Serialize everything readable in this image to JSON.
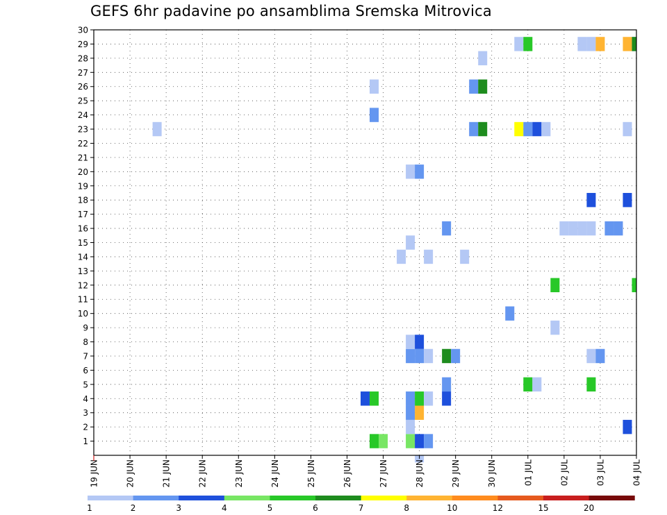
{
  "chart_data": {
    "type": "heatmap",
    "title": "GEFS 6hr padavine po ansamblima Sremska Mitrovica",
    "xlabel": "",
    "ylabel": "",
    "x_ticks": [
      "19 JUN",
      "20 JUN",
      "21 JUN",
      "22 JUN",
      "23 JUN",
      "24 JUN",
      "25 JUN",
      "26 JUN",
      "27 JUN",
      "28 JUN",
      "29 JUN",
      "30 JUN",
      "01 JUL",
      "02 JUL",
      "03 JUL",
      "04 JUL"
    ],
    "y_ticks": [
      1,
      2,
      3,
      4,
      5,
      6,
      7,
      8,
      9,
      10,
      11,
      12,
      13,
      14,
      15,
      16,
      17,
      18,
      19,
      20,
      21,
      22,
      23,
      24,
      25,
      26,
      27,
      28,
      29,
      30
    ],
    "ylim": [
      0,
      30
    ],
    "x_step_hours": 6,
    "grid": "dotted",
    "legend": {
      "placement": "bottom",
      "thresholds": [
        "1",
        "2",
        "3",
        "4",
        "5",
        "6",
        "7",
        "8",
        "10",
        "12",
        "15",
        "20"
      ],
      "colors": [
        "#b4c8f5",
        "#6496f0",
        "#1e50dc",
        "#78e664",
        "#28c828",
        "#1e8c1e",
        "#ffff00",
        "#ffb432",
        "#ff8c1e",
        "#e65a1e",
        "#c81e1e",
        "#780a0a"
      ]
    },
    "cells": [
      {
        "date": "26 JUN",
        "step": 3,
        "member": 1,
        "value": 5
      },
      {
        "date": "27 JUN",
        "step": 0,
        "member": 1,
        "value": 4
      },
      {
        "date": "27 JUN",
        "step": 3,
        "member": 1,
        "value": 4
      },
      {
        "date": "27 JUN",
        "step": 4,
        "member": 1,
        "value": 3
      },
      {
        "date": "27 JUN",
        "step": 5,
        "member": 1,
        "value": 2
      },
      {
        "date": "27 JUN",
        "step": 4,
        "member": 0,
        "value": 1
      },
      {
        "date": "27 JUN",
        "step": 3,
        "member": 2,
        "value": 1
      },
      {
        "date": "04 JUL",
        "step": -1,
        "member": 2,
        "value": 3
      },
      {
        "date": "27 JUN",
        "step": 3,
        "member": 3,
        "value": 2
      },
      {
        "date": "27 JUN",
        "step": 4,
        "member": 3,
        "value": 8
      },
      {
        "date": "26 JUN",
        "step": 2,
        "member": 4,
        "value": 3
      },
      {
        "date": "26 JUN",
        "step": 3,
        "member": 4,
        "value": 5
      },
      {
        "date": "27 JUN",
        "step": 3,
        "member": 4,
        "value": 2
      },
      {
        "date": "27 JUN",
        "step": 4,
        "member": 4,
        "value": 5
      },
      {
        "date": "27 JUN",
        "step": 5,
        "member": 4,
        "value": 1
      },
      {
        "date": "28 JUN",
        "step": 3,
        "member": 4,
        "value": 3
      },
      {
        "date": "28 JUN",
        "step": 3,
        "member": 5,
        "value": 2
      },
      {
        "date": "30 JUN",
        "step": 4,
        "member": 5,
        "value": 5
      },
      {
        "date": "30 JUN",
        "step": 5,
        "member": 5,
        "value": 1
      },
      {
        "date": "02 JUL",
        "step": 3,
        "member": 5,
        "value": 5
      },
      {
        "date": "27 JUN",
        "step": 3,
        "member": 7,
        "value": 2
      },
      {
        "date": "27 JUN",
        "step": 4,
        "member": 7,
        "value": 2
      },
      {
        "date": "27 JUN",
        "step": 5,
        "member": 7,
        "value": 1
      },
      {
        "date": "28 JUN",
        "step": 3,
        "member": 7,
        "value": 6
      },
      {
        "date": "28 JUN",
        "step": 4,
        "member": 7,
        "value": 2
      },
      {
        "date": "02 JUL",
        "step": 3,
        "member": 7,
        "value": 1
      },
      {
        "date": "02 JUL",
        "step": 4,
        "member": 7,
        "value": 2
      },
      {
        "date": "27 JUN",
        "step": 3,
        "member": 8,
        "value": 1
      },
      {
        "date": "27 JUN",
        "step": 4,
        "member": 8,
        "value": 3
      },
      {
        "date": "01 JUL",
        "step": 3,
        "member": 9,
        "value": 1
      },
      {
        "date": "30 JUN",
        "step": 2,
        "member": 10,
        "value": 2
      },
      {
        "date": "01 JUL",
        "step": 3,
        "member": 12,
        "value": 5
      },
      {
        "date": "04 JUL",
        "step": 0,
        "member": 12,
        "value": 5
      },
      {
        "date": "27 JUN",
        "step": 2,
        "member": 14,
        "value": 1
      },
      {
        "date": "27 JUN",
        "step": 5,
        "member": 14,
        "value": 1
      },
      {
        "date": "29 JUN",
        "step": 1,
        "member": 14,
        "value": 1
      },
      {
        "date": "27 JUN",
        "step": 3,
        "member": 15,
        "value": 1
      },
      {
        "date": "28 JUN",
        "step": 3,
        "member": 16,
        "value": 2
      },
      {
        "date": "01 JUL",
        "step": 6,
        "member": 16,
        "value": 1
      },
      {
        "date": "01 JUL",
        "step": 7,
        "member": 16,
        "value": 1
      },
      {
        "date": "02 JUL",
        "step": 0,
        "member": 16,
        "value": 1
      },
      {
        "date": "02 JUL",
        "step": 1,
        "member": 16,
        "value": 1
      },
      {
        "date": "02 JUL",
        "step": 5,
        "member": 16,
        "value": 2
      },
      {
        "date": "02 JUL",
        "step": 6,
        "member": 16,
        "value": 2
      },
      {
        "date": "02 JUL",
        "step": 3,
        "member": 18,
        "value": 3
      },
      {
        "date": "03 JUL",
        "step": 3,
        "member": 18,
        "value": 3
      },
      {
        "date": "27 JUN",
        "step": 3,
        "member": 20,
        "value": 1
      },
      {
        "date": "27 JUN",
        "step": 4,
        "member": 20,
        "value": 2
      },
      {
        "date": "20 JUN",
        "step": 3,
        "member": 23,
        "value": 1
      },
      {
        "date": "28 JUN",
        "step": 6,
        "member": 23,
        "value": 2
      },
      {
        "date": "29 JUN",
        "step": 3,
        "member": 23,
        "value": 6
      },
      {
        "date": "30 JUN",
        "step": 3,
        "member": 23,
        "value": 7
      },
      {
        "date": "30 JUN",
        "step": 4,
        "member": 23,
        "value": 2
      },
      {
        "date": "30 JUN",
        "step": 5,
        "member": 23,
        "value": 3
      },
      {
        "date": "30 JUN",
        "step": 6,
        "member": 23,
        "value": 1
      },
      {
        "date": "03 JUL",
        "step": 3,
        "member": 23,
        "value": 1
      },
      {
        "date": "26 JUN",
        "step": 3,
        "member": 24,
        "value": 2
      },
      {
        "date": "26 JUN",
        "step": 3,
        "member": 26,
        "value": 1
      },
      {
        "date": "29 JUN",
        "step": 2,
        "member": 26,
        "value": 2
      },
      {
        "date": "29 JUN",
        "step": 3,
        "member": 26,
        "value": 6
      },
      {
        "date": "29 JUN",
        "step": 3,
        "member": 28,
        "value": 1
      },
      {
        "date": "30 JUN",
        "step": 3,
        "member": 29,
        "value": 1
      },
      {
        "date": "30 JUN",
        "step": 4,
        "member": 29,
        "value": 5
      },
      {
        "date": "01 JUL",
        "step": 6,
        "member": 29,
        "value": 1
      },
      {
        "date": "02 JUL",
        "step": 3,
        "member": 29,
        "value": 1
      },
      {
        "date": "02 JUL",
        "step": 4,
        "member": 29,
        "value": 8
      },
      {
        "date": "03 JUL",
        "step": 3,
        "member": 29,
        "value": 8
      },
      {
        "date": "03 JUL",
        "step": 4,
        "member": 29,
        "value": 2
      },
      {
        "date": "04 JUL",
        "step": 0,
        "member": 29,
        "value": 6
      }
    ]
  }
}
